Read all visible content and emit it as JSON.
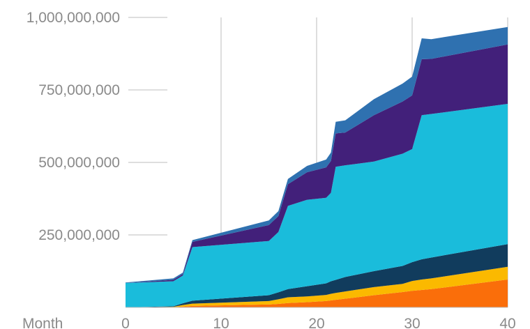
{
  "chart_data": {
    "type": "area",
    "stacked": true,
    "title": "",
    "xlabel": "Month",
    "ylabel": "",
    "xlim": [
      0,
      40
    ],
    "ylim": [
      0,
      1000000000
    ],
    "x_ticks": [
      0,
      10,
      20,
      30,
      40
    ],
    "x_tick_labels": [
      "0",
      "10",
      "20",
      "30",
      "40"
    ],
    "y_ticks": [
      250000000,
      500000000,
      750000000,
      1000000000
    ],
    "y_tick_labels": [
      "250,000,000",
      "500,000,000",
      "750,000,000",
      "1,000,000,000"
    ],
    "grid": "vertical",
    "legend": "none",
    "x": [
      0,
      5,
      6,
      7,
      15,
      16,
      17,
      19,
      21,
      21.5,
      22,
      23,
      26,
      29,
      30,
      31,
      32,
      40
    ],
    "series": [
      {
        "color": "#fa6e0a",
        "values": [
          0,
          1000000,
          3000000,
          5000000,
          10000000,
          12000000,
          15000000,
          18000000,
          22000000,
          24000000,
          26000000,
          30000000,
          42000000,
          53000000,
          57000000,
          60000000,
          63000000,
          96000000
        ]
      },
      {
        "color": "#fbb900",
        "values": [
          0,
          1000000,
          5000000,
          8000000,
          12000000,
          16000000,
          20000000,
          20000000,
          21000000,
          23000000,
          24000000,
          25000000,
          28000000,
          28000000,
          34000000,
          36000000,
          37000000,
          44000000
        ]
      },
      {
        "color": "#113c5d",
        "values": [
          0,
          2000000,
          6000000,
          10000000,
          20000000,
          24000000,
          28000000,
          35000000,
          40000000,
          43000000,
          45000000,
          50000000,
          55000000,
          62000000,
          65000000,
          70000000,
          72000000,
          78000000
        ]
      },
      {
        "color": "#1abcdb",
        "values": [
          84000000,
          86000000,
          96000000,
          185000000,
          187000000,
          208000000,
          287000000,
          298000000,
          295000000,
          305000000,
          390000000,
          385000000,
          378000000,
          387000000,
          390000000,
          497000000,
          495000000,
          484000000
        ]
      },
      {
        "color": "#42207a",
        "values": [
          0,
          5000000,
          5000000,
          18000000,
          55000000,
          55000000,
          75000000,
          95000000,
          105000000,
          110000000,
          115000000,
          113000000,
          160000000,
          180000000,
          185000000,
          193000000,
          190000000,
          205000000
        ]
      },
      {
        "color": "#2f71b0",
        "values": [
          2000000,
          5000000,
          5000000,
          6000000,
          16000000,
          17000000,
          18000000,
          22000000,
          27000000,
          29000000,
          40000000,
          42000000,
          55000000,
          62000000,
          65000000,
          72000000,
          68000000,
          60000000
        ]
      }
    ]
  }
}
